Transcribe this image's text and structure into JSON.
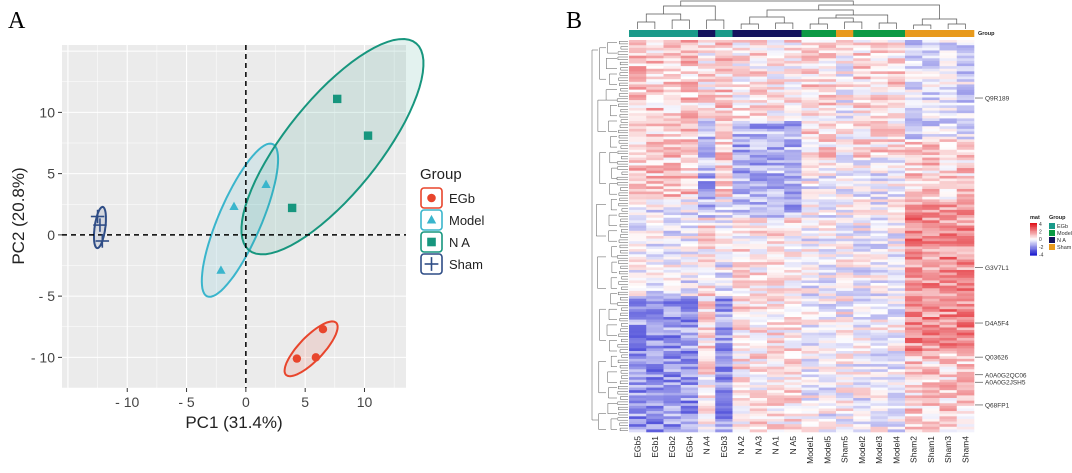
{
  "panels": {
    "a_label": "A",
    "b_label": "B"
  },
  "colors": {
    "EGb": "#e8452c",
    "Model": "#3ab5cc",
    "N A": "#17967e",
    "Sham": "#2f4d86",
    "heat_low": "#1c1ccf",
    "heat_mid": "#ffffff",
    "heat_high": "#e0141c",
    "group_EGb": "#1a9a8a",
    "group_Model": "#0c9a44",
    "group_NA": "#14145e",
    "group_Sham": "#e89a1c"
  },
  "chart_data": [
    {
      "type": "scatter",
      "title": "",
      "xlabel": "PC1 (31.4%)",
      "ylabel": "PC2 (20.8%)",
      "xlim": [
        -15.5,
        13.5
      ],
      "ylim": [
        -12.5,
        15.5
      ],
      "xticks": [
        -10,
        -5,
        0,
        5,
        10
      ],
      "yticks": [
        -10,
        -5,
        0,
        5,
        10
      ],
      "xtick_labels": [
        "- 10",
        "- 5",
        "0",
        "5",
        "10"
      ],
      "ytick_labels": [
        "- 10",
        "- 5",
        "0",
        "5",
        "10"
      ],
      "legend_title": "Group",
      "legend_position": "right",
      "series": [
        {
          "name": "EGb",
          "marker": "circle",
          "points": [
            [
              4.3,
              -10.1
            ],
            [
              5.9,
              -10.0
            ],
            [
              6.5,
              -7.7
            ]
          ],
          "ellipse": {
            "cx": 5.5,
            "cy": -9.3,
            "rx": 3.0,
            "ry": 1.0,
            "angle": 45
          }
        },
        {
          "name": "Model",
          "marker": "triangle",
          "points": [
            [
              -2.1,
              -2.9
            ],
            [
              -1.0,
              2.3
            ],
            [
              1.7,
              4.1
            ]
          ],
          "ellipse": {
            "cx": -0.5,
            "cy": 1.2,
            "rx": 6.8,
            "ry": 1.8,
            "angle": 66
          }
        },
        {
          "name": "N A",
          "marker": "square",
          "points": [
            [
              3.9,
              2.2
            ],
            [
              7.7,
              11.1
            ],
            [
              10.3,
              8.1
            ]
          ],
          "ellipse": {
            "cx": 7.3,
            "cy": 7.2,
            "rx": 11.0,
            "ry": 3.9,
            "angle": 50
          }
        },
        {
          "name": "Sham",
          "marker": "plus",
          "points": [
            [
              -12.5,
              1.5
            ],
            [
              -12.3,
              0.8
            ],
            [
              -12.1,
              -0.5
            ]
          ],
          "ellipse": {
            "cx": -12.3,
            "cy": 0.6,
            "rx": 1.7,
            "ry": 0.45,
            "angle": 82
          }
        }
      ]
    },
    {
      "type": "heatmap",
      "columns": [
        "EGb5",
        "EGb1",
        "EGb2",
        "EGb4",
        "N A4",
        "EGb3",
        "N A2",
        "N A3",
        "N A1",
        "N A5",
        "Model1",
        "Model5",
        "Sham5",
        "Model2",
        "Model3",
        "Model4",
        "Sham2",
        "Sham1",
        "Sham3",
        "Sham4"
      ],
      "column_groups": [
        "EGb",
        "EGb",
        "EGb",
        "EGb",
        "N A",
        "EGb",
        "N A",
        "N A",
        "N A",
        "N A",
        "Model",
        "Model",
        "Sham",
        "Model",
        "Model",
        "Model",
        "Sham",
        "Sham",
        "Sham",
        "Sham"
      ],
      "annotation_label": "Group",
      "row_labels": [
        "Q9R189",
        "G3V7L1",
        "D4A5F4",
        "Q03626",
        "A0A0G2QC06",
        "A0A0G2JSH5",
        "Q68FP1"
      ],
      "legend": {
        "mat_title": "mat",
        "mat_ticks": [
          "4",
          "2",
          "0",
          "-2",
          "-4"
        ],
        "group_title": "Group",
        "groups": [
          "EGb",
          "Model",
          "N A",
          "Sham"
        ]
      },
      "value_range": [
        -4,
        4
      ]
    }
  ]
}
